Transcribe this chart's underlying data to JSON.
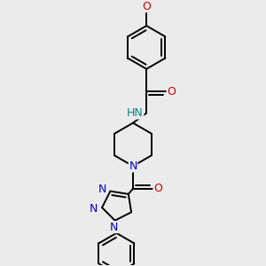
{
  "bg_color": "#ebebeb",
  "atom_colors": {
    "C": "#000000",
    "N": "#0000cc",
    "O": "#cc0000",
    "H": "#008888"
  },
  "bond_color": "#000000",
  "bond_width": 1.4,
  "figsize": [
    3.0,
    3.0
  ],
  "dpi": 100,
  "xlim": [
    -2.5,
    2.5
  ],
  "ylim": [
    -4.5,
    4.0
  ]
}
